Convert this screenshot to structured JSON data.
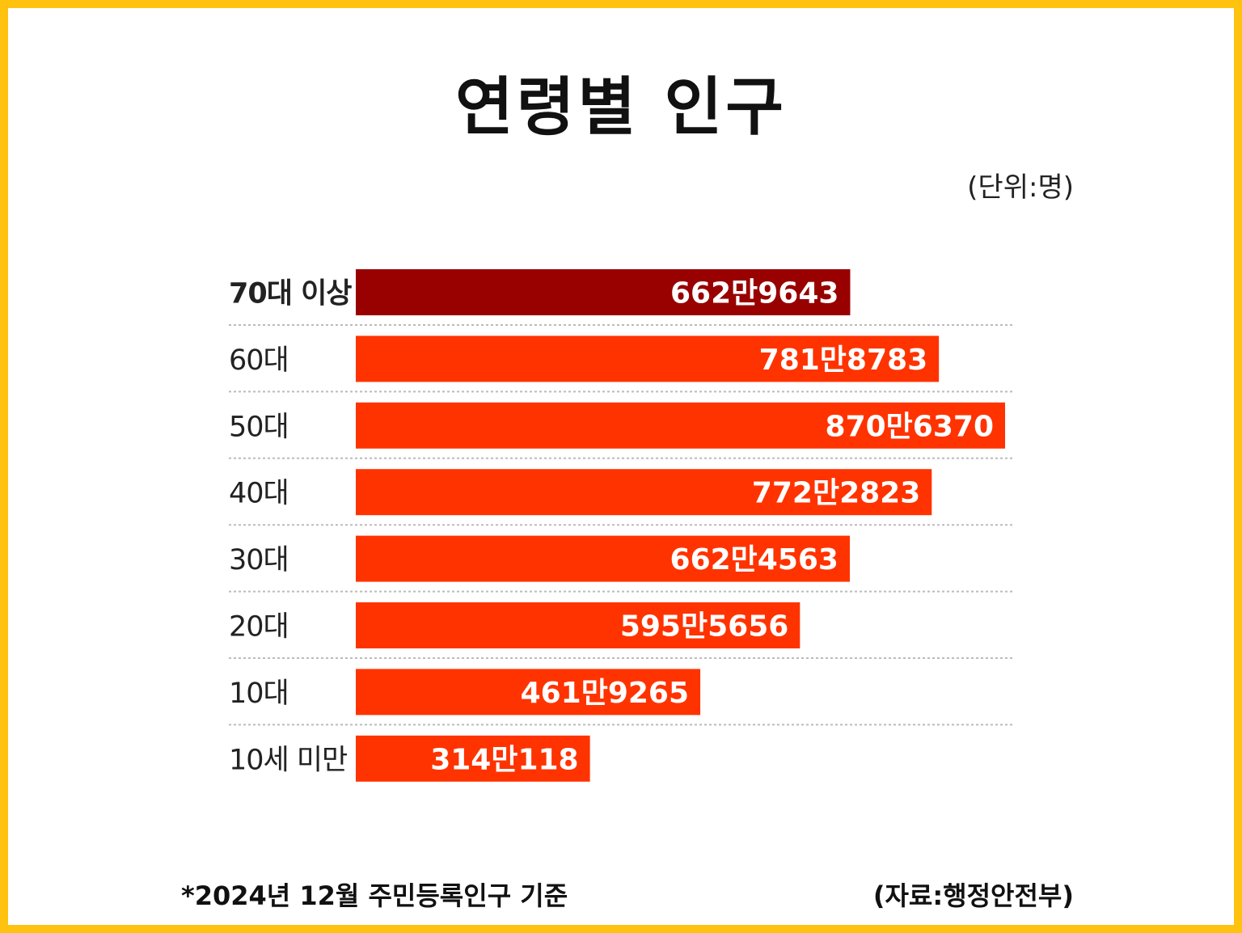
{
  "title": "연령별 인구",
  "unit": "(단위:명)",
  "footnote": "*2024년 12월 주민등록인구 기준",
  "source": "(자료:행정안전부)",
  "colors": {
    "frame": "#FFC20E",
    "highlight_bar": "#990000",
    "bar": "#FF3300",
    "grid": "#bbbbbb"
  },
  "chart_data": {
    "type": "bar",
    "orientation": "horizontal",
    "categories": [
      "70대 이상",
      "60대",
      "50대",
      "40대",
      "30대",
      "20대",
      "10대",
      "10세 미만"
    ],
    "values": [
      6629643,
      7818783,
      8706370,
      7722823,
      6624563,
      5955656,
      4619265,
      3140118
    ],
    "value_labels": [
      "662만9643",
      "781만8783",
      "870만6370",
      "772만2823",
      "662만4563",
      "595만5656",
      "461만9265",
      "314만118"
    ],
    "highlight_index": 0,
    "grid": true
  }
}
